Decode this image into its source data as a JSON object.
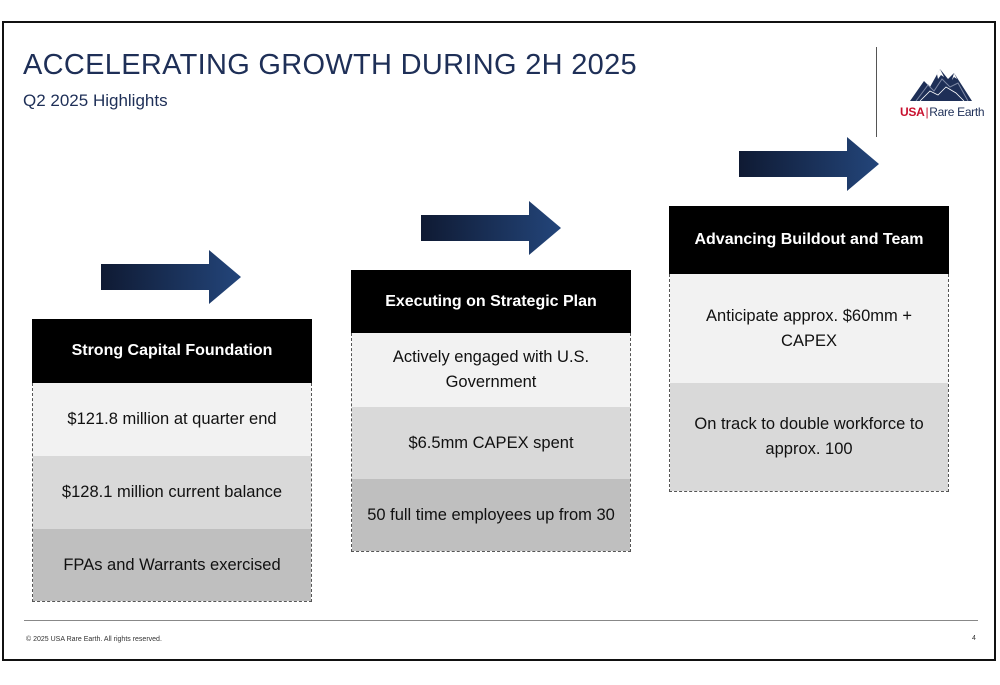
{
  "slide": {
    "title": "ACCELERATING GROWTH DURING 2H 2025",
    "subtitle": "Q2 2025 Highlights",
    "logo": {
      "icon": "mountain-logo-icon",
      "usa_text": "USA",
      "separator": "|",
      "brand_text": "Rare Earth"
    },
    "colors": {
      "title": "#1e2f57",
      "arrow": "#1e3a66",
      "header_bg": "#000000",
      "logo_red": "#c8102e"
    }
  },
  "panels": [
    {
      "arrow_icon": "right-arrow-icon",
      "header": "Strong Capital Foundation",
      "rows": [
        "$121.8 million at quarter end",
        "$128.1 million current balance",
        "FPAs and Warrants exercised"
      ]
    },
    {
      "arrow_icon": "right-arrow-icon",
      "header": "Executing on Strategic Plan",
      "rows": [
        "Actively engaged with U.S. Government",
        "$6.5mm CAPEX spent",
        "50 full time employees up from 30"
      ]
    },
    {
      "arrow_icon": "right-arrow-icon",
      "header": "Advancing Buildout and Team",
      "rows": [
        "Anticipate approx. $60mm + CAPEX",
        "On track to double workforce to approx. 100"
      ]
    }
  ],
  "footer": {
    "copyright": "© 2025 USA Rare Earth. All rights reserved.",
    "page_number": "4"
  }
}
